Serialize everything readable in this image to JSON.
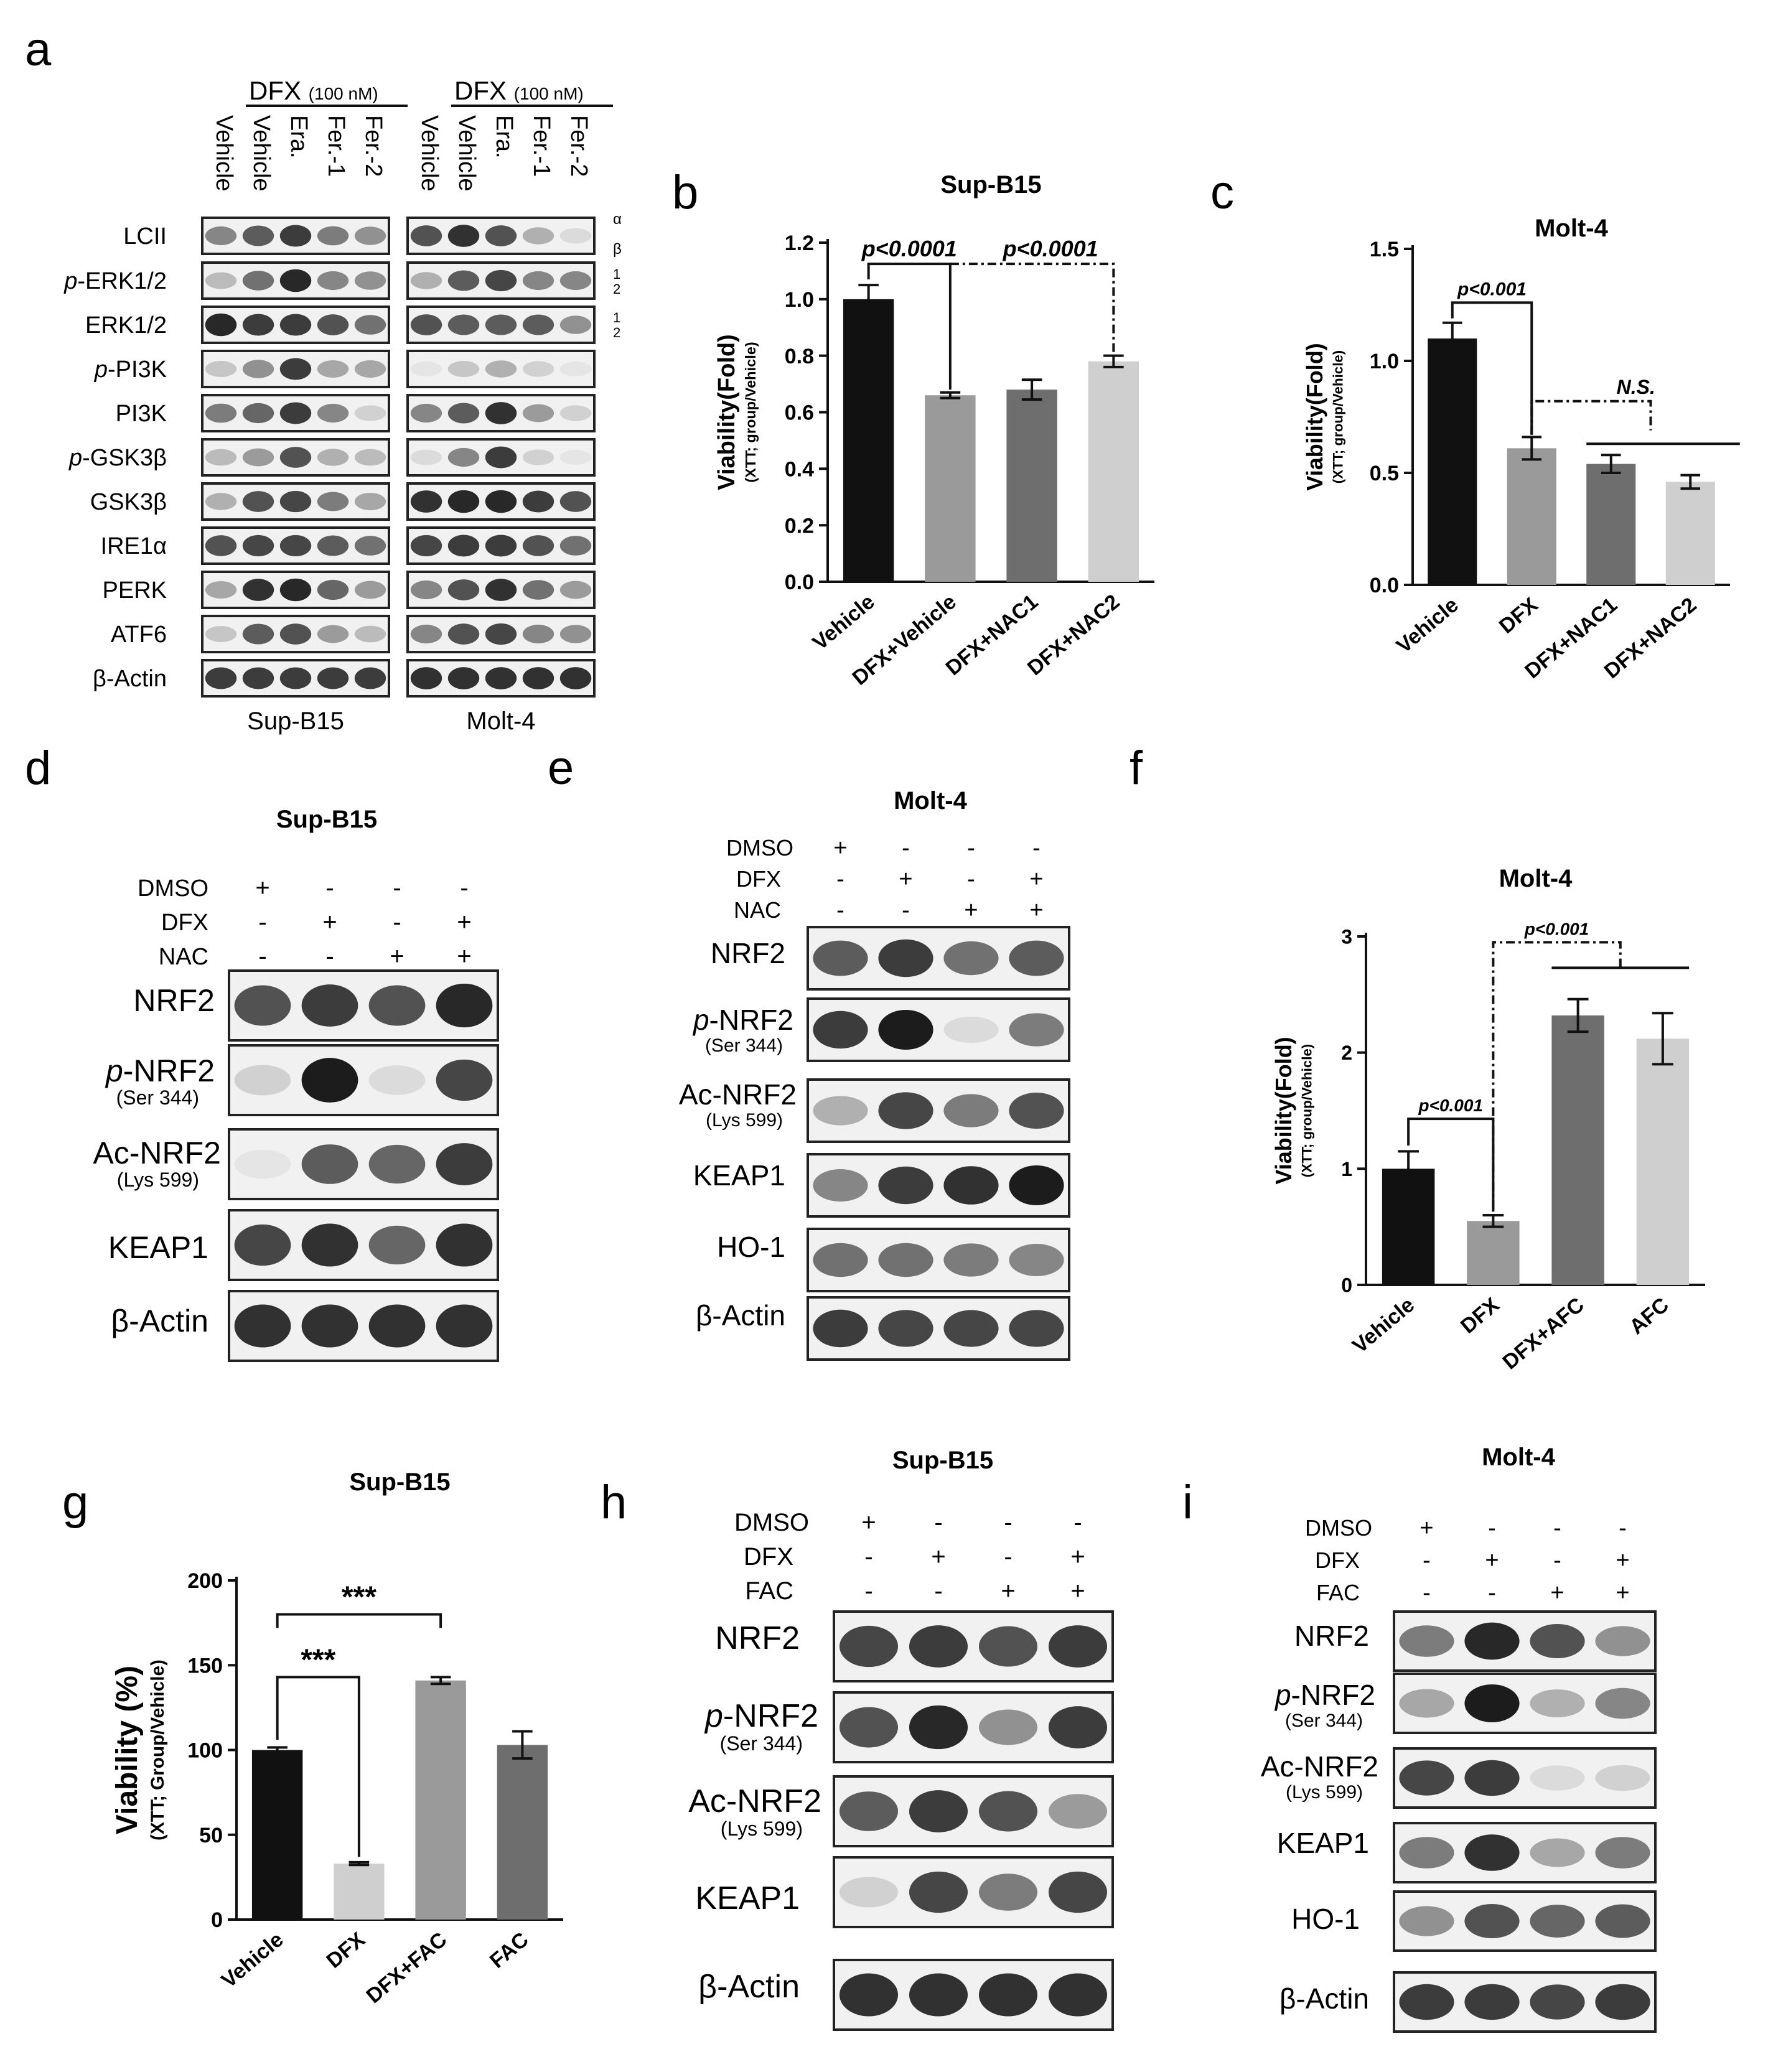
{
  "panel_letters": [
    "a",
    "b",
    "c",
    "d",
    "e",
    "f",
    "g",
    "h",
    "i"
  ],
  "colors": {
    "black": "#111111",
    "dark_gray": "#6e6e6e",
    "mid_gray": "#9a9a9a",
    "light_gray": "#cfcfcf",
    "band": "#1c1c1c",
    "blot_bg": "#f1f1f1"
  },
  "panel_a": {
    "group_label": "DFX",
    "group_dose": "(100 nM)",
    "lane_labels": [
      "Vehicle",
      "Vehicle",
      "Era.",
      "Fer.-1",
      "Fer.-2"
    ],
    "cell_lines": [
      "Sup-B15",
      "Molt-4"
    ],
    "rows": [
      {
        "label": "LCII",
        "prefix": ""
      },
      {
        "label": "-ERK1/2",
        "prefix": "p"
      },
      {
        "label": "ERK1/2",
        "prefix": ""
      },
      {
        "label": "-PI3K",
        "prefix": "p"
      },
      {
        "label": "PI3K",
        "prefix": ""
      },
      {
        "label": "-GSK3β",
        "prefix": "p"
      },
      {
        "label": "GSK3β",
        "prefix": ""
      },
      {
        "label": "IRE1α",
        "prefix": ""
      },
      {
        "label": "PERK",
        "prefix": ""
      },
      {
        "label": "ATF6",
        "prefix": ""
      },
      {
        "label": "β-Actin",
        "prefix": ""
      }
    ],
    "right_marks": {
      "alpha": "α",
      "beta": "β",
      "one": "1",
      "two": "2"
    },
    "intensity_sup": [
      [
        0.5,
        0.7,
        0.85,
        0.55,
        0.45
      ],
      [
        0.25,
        0.6,
        0.95,
        0.5,
        0.45
      ],
      [
        0.95,
        0.85,
        0.85,
        0.75,
        0.6
      ],
      [
        0.2,
        0.45,
        0.85,
        0.35,
        0.35
      ],
      [
        0.55,
        0.65,
        0.85,
        0.5,
        0.15
      ],
      [
        0.25,
        0.4,
        0.75,
        0.3,
        0.25
      ],
      [
        0.3,
        0.75,
        0.8,
        0.55,
        0.35
      ],
      [
        0.75,
        0.8,
        0.8,
        0.7,
        0.6
      ],
      [
        0.35,
        0.9,
        0.95,
        0.65,
        0.4
      ],
      [
        0.2,
        0.7,
        0.75,
        0.4,
        0.25
      ],
      [
        0.85,
        0.85,
        0.85,
        0.85,
        0.85
      ]
    ],
    "intensity_molt": [
      [
        0.75,
        0.9,
        0.75,
        0.3,
        0.1
      ],
      [
        0.3,
        0.7,
        0.8,
        0.5,
        0.5
      ],
      [
        0.75,
        0.7,
        0.7,
        0.7,
        0.45
      ],
      [
        0.05,
        0.2,
        0.3,
        0.15,
        0.05
      ],
      [
        0.5,
        0.7,
        0.9,
        0.4,
        0.15
      ],
      [
        0.1,
        0.5,
        0.85,
        0.15,
        0.05
      ],
      [
        0.9,
        0.95,
        0.95,
        0.85,
        0.75
      ],
      [
        0.8,
        0.85,
        0.85,
        0.75,
        0.6
      ],
      [
        0.5,
        0.75,
        0.9,
        0.6,
        0.4
      ],
      [
        0.5,
        0.75,
        0.8,
        0.5,
        0.45
      ],
      [
        0.9,
        0.9,
        0.9,
        0.9,
        0.9
      ]
    ]
  },
  "panel_d": {
    "title": "Sup-B15",
    "conditions": [
      {
        "label": "DMSO",
        "signs": [
          "+",
          "-",
          "-",
          "-"
        ]
      },
      {
        "label": "DFX",
        "signs": [
          "-",
          "+",
          "-",
          "+"
        ]
      },
      {
        "label": "NAC",
        "signs": [
          "-",
          "-",
          "+",
          "+"
        ]
      }
    ],
    "rows": [
      {
        "label": "NRF2",
        "prefix": "",
        "sub": ""
      },
      {
        "label": "-NRF2",
        "prefix": "p",
        "sub": "(Ser 344)"
      },
      {
        "label": "Ac-NRF2",
        "prefix": "",
        "sub": "(Lys 599)"
      },
      {
        "label": "KEAP1",
        "prefix": "",
        "sub": ""
      },
      {
        "label": "β-Actin",
        "prefix": "",
        "sub": ""
      }
    ],
    "intensity": [
      [
        0.75,
        0.85,
        0.75,
        0.95
      ],
      [
        0.15,
        1.0,
        0.1,
        0.8
      ],
      [
        0.05,
        0.7,
        0.65,
        0.85
      ],
      [
        0.8,
        0.9,
        0.65,
        0.9
      ],
      [
        0.9,
        0.9,
        0.9,
        0.9
      ]
    ]
  },
  "panel_e": {
    "title": "Molt-4",
    "conditions": [
      {
        "label": "DMSO",
        "signs": [
          "+",
          "-",
          "-",
          "-"
        ]
      },
      {
        "label": "DFX",
        "signs": [
          "-",
          "+",
          "-",
          "+"
        ]
      },
      {
        "label": "NAC",
        "signs": [
          "-",
          "-",
          "+",
          "+"
        ]
      }
    ],
    "rows": [
      {
        "label": "NRF2",
        "prefix": "",
        "sub": ""
      },
      {
        "label": "-NRF2",
        "prefix": "p",
        "sub": "(Ser 344)"
      },
      {
        "label": "Ac-NRF2",
        "prefix": "",
        "sub": "(Lys 599)"
      },
      {
        "label": "KEAP1",
        "prefix": "",
        "sub": ""
      },
      {
        "label": "HO-1",
        "prefix": "",
        "sub": ""
      },
      {
        "label": "β-Actin",
        "prefix": "",
        "sub": ""
      }
    ],
    "intensity": [
      [
        0.7,
        0.85,
        0.6,
        0.7
      ],
      [
        0.85,
        1.0,
        0.1,
        0.55
      ],
      [
        0.3,
        0.8,
        0.55,
        0.75
      ],
      [
        0.5,
        0.85,
        0.9,
        1.0
      ],
      [
        0.6,
        0.6,
        0.55,
        0.5
      ],
      [
        0.85,
        0.8,
        0.8,
        0.8
      ]
    ]
  },
  "panel_h": {
    "title": "Sup-B15",
    "conditions": [
      {
        "label": "DMSO",
        "signs": [
          "+",
          "-",
          "-",
          "-"
        ]
      },
      {
        "label": "DFX",
        "signs": [
          "-",
          "+",
          "-",
          "+"
        ]
      },
      {
        "label": "FAC",
        "signs": [
          "-",
          "-",
          "+",
          "+"
        ]
      }
    ],
    "rows": [
      {
        "label": "NRF2",
        "prefix": "",
        "sub": ""
      },
      {
        "label": "-NRF2",
        "prefix": "p",
        "sub": "(Ser 344)"
      },
      {
        "label": "Ac-NRF2",
        "prefix": "",
        "sub": "(Lys 599)"
      },
      {
        "label": "KEAP1",
        "prefix": "",
        "sub": ""
      },
      {
        "label": "β-Actin",
        "prefix": "",
        "sub": ""
      }
    ],
    "intensity": [
      [
        0.8,
        0.85,
        0.75,
        0.85
      ],
      [
        0.75,
        0.95,
        0.45,
        0.85
      ],
      [
        0.7,
        0.85,
        0.75,
        0.4
      ],
      [
        0.15,
        0.8,
        0.55,
        0.8
      ],
      [
        0.9,
        0.9,
        0.9,
        0.9
      ]
    ]
  },
  "panel_i": {
    "title": "Molt-4",
    "conditions": [
      {
        "label": "DMSO",
        "signs": [
          "+",
          "-",
          "-",
          "-"
        ]
      },
      {
        "label": "DFX",
        "signs": [
          "-",
          "+",
          "-",
          "+"
        ]
      },
      {
        "label": "FAC",
        "signs": [
          "-",
          "-",
          "+",
          "+"
        ]
      }
    ],
    "rows": [
      {
        "label": "NRF2",
        "prefix": "",
        "sub": ""
      },
      {
        "label": "-NRF2",
        "prefix": "p",
        "sub": "(Ser 344)"
      },
      {
        "label": "Ac-NRF2",
        "prefix": "",
        "sub": "(Lys 599)"
      },
      {
        "label": "KEAP1",
        "prefix": "",
        "sub": ""
      },
      {
        "label": "HO-1",
        "prefix": "",
        "sub": ""
      },
      {
        "label": "β-Actin",
        "prefix": "",
        "sub": ""
      }
    ],
    "intensity": [
      [
        0.55,
        0.95,
        0.75,
        0.45
      ],
      [
        0.35,
        1.0,
        0.3,
        0.5
      ],
      [
        0.8,
        0.85,
        0.1,
        0.15
      ],
      [
        0.55,
        0.9,
        0.35,
        0.55
      ],
      [
        0.45,
        0.75,
        0.65,
        0.7
      ],
      [
        0.85,
        0.85,
        0.8,
        0.85
      ]
    ]
  },
  "chart_data": [
    {
      "panel": "b",
      "type": "bar",
      "title": "Sup-B15",
      "ylabel": "Viability(Fold)",
      "ylabel_sub": "(XTT; group/Vehicle)",
      "categories": [
        "Vehicle",
        "DFX+Vehicle",
        "DFX+NAC1",
        "DFX+NAC2"
      ],
      "values": [
        1.0,
        0.66,
        0.68,
        0.78
      ],
      "errors": [
        0.05,
        0.01,
        0.035,
        0.02
      ],
      "colors": [
        "#111111",
        "#9a9a9a",
        "#6e6e6e",
        "#cfcfcf"
      ],
      "ylim": [
        0,
        1.2
      ],
      "yticks": [
        0.0,
        0.2,
        0.4,
        0.6,
        0.8,
        1.0,
        1.2
      ],
      "tick_labels": [
        "0.0",
        "0.2",
        "0.4",
        "0.6",
        "0.8",
        "1.0",
        "1.2"
      ],
      "annotations": [
        "p<0.0001",
        "p<0.0001"
      ]
    },
    {
      "panel": "c",
      "type": "bar",
      "title": "Molt-4",
      "ylabel": "Viability(Fold)",
      "ylabel_sub": "(XTT; group/Vehicle)",
      "categories": [
        "Vehicle",
        "DFX",
        "DFX+NAC1",
        "DFX+NAC2"
      ],
      "values": [
        1.1,
        0.61,
        0.54,
        0.46
      ],
      "errors": [
        0.07,
        0.05,
        0.04,
        0.03
      ],
      "colors": [
        "#111111",
        "#9a9a9a",
        "#6e6e6e",
        "#cfcfcf"
      ],
      "ylim": [
        0,
        1.5
      ],
      "yticks": [
        0.0,
        0.5,
        1.0,
        1.5
      ],
      "tick_labels": [
        "0.0",
        "0.5",
        "1.0",
        "1.5"
      ],
      "annotations": [
        "p<0.001",
        "N.S."
      ]
    },
    {
      "panel": "f",
      "type": "bar",
      "title": "Molt-4",
      "ylabel": "Viability(Fold)",
      "ylabel_sub": "(XTT; group/Vehicle)",
      "categories": [
        "Vehicle",
        "DFX",
        "DFX+AFC",
        "AFC"
      ],
      "values": [
        1.0,
        0.55,
        2.32,
        2.12
      ],
      "errors": [
        0.15,
        0.05,
        0.14,
        0.22
      ],
      "colors": [
        "#111111",
        "#9a9a9a",
        "#6e6e6e",
        "#cfcfcf"
      ],
      "ylim": [
        0,
        3
      ],
      "yticks": [
        0,
        1,
        2,
        3
      ],
      "tick_labels": [
        "0",
        "1",
        "2",
        "3"
      ],
      "annotations": [
        "p<0.001",
        "p<0.001"
      ]
    },
    {
      "panel": "g",
      "type": "bar",
      "title": "Sup-B15",
      "ylabel": "Viability (%)",
      "ylabel_sub": "(XTT; Group/Vehicle)",
      "categories": [
        "Vehicle",
        "DFX",
        "DFX+FAC",
        "FAC"
      ],
      "values": [
        100,
        33,
        141,
        103
      ],
      "errors": [
        1.5,
        0.8,
        2,
        8
      ],
      "colors": [
        "#111111",
        "#cfcfcf",
        "#9a9a9a",
        "#6e6e6e"
      ],
      "ylim": [
        0,
        200
      ],
      "yticks": [
        0,
        50,
        100,
        150,
        200
      ],
      "tick_labels": [
        "0",
        "50",
        "100",
        "150",
        "200"
      ],
      "annotations": [
        "***",
        "***"
      ]
    }
  ]
}
